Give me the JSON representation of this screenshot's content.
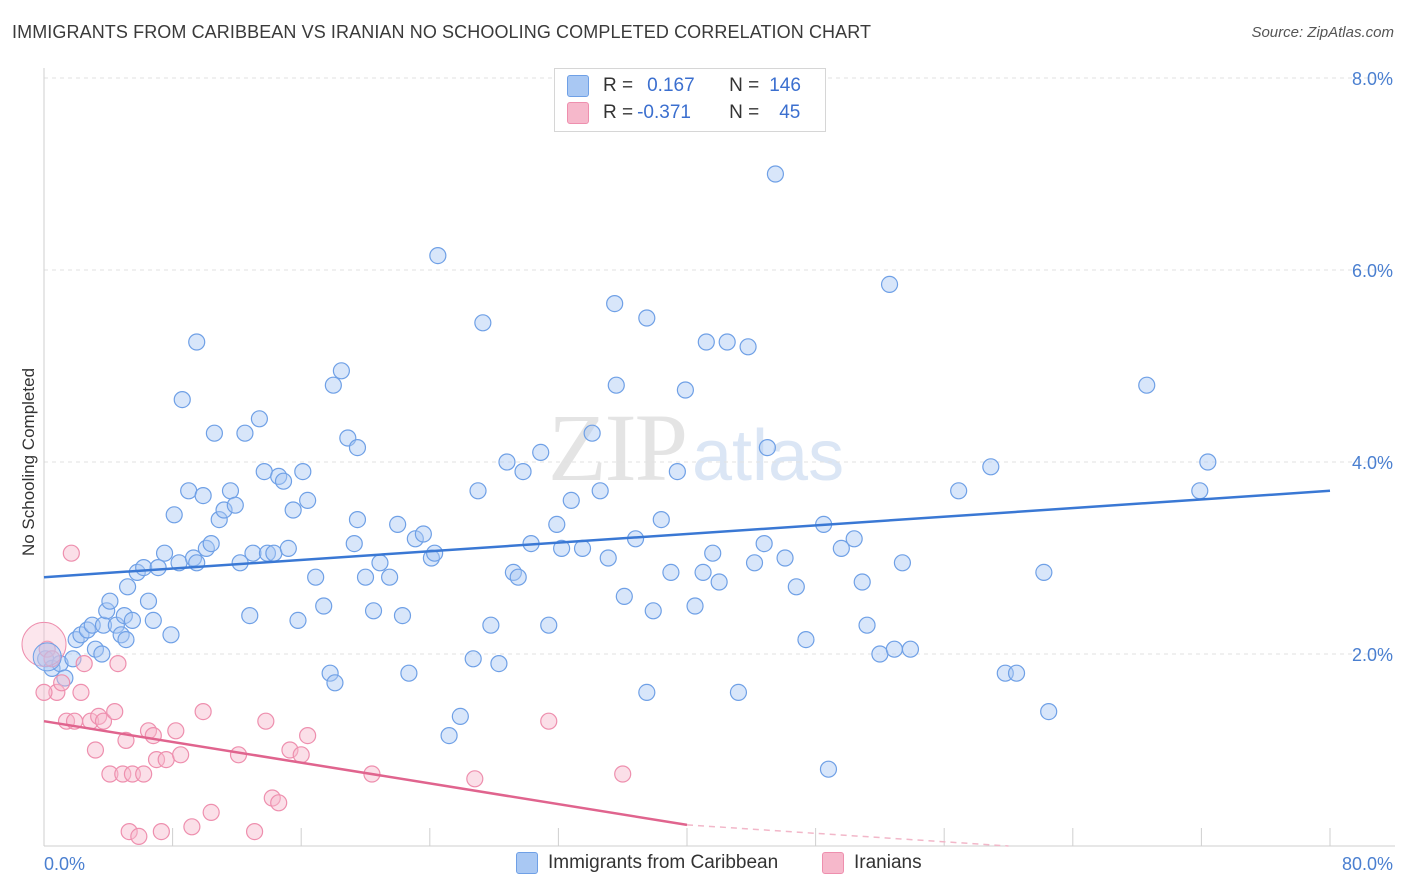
{
  "title": "IMMIGRANTS FROM CARIBBEAN VS IRANIAN NO SCHOOLING COMPLETED CORRELATION CHART",
  "source": "Source: ZipAtlas.com",
  "watermark": {
    "zip": "ZIP",
    "atlas": "atlas"
  },
  "legend": {
    "rows": [
      {
        "r_label": "R = ",
        "r_value": "0.167",
        "n_label": "N = ",
        "n_value": "146",
        "color": "#a9c8f3"
      },
      {
        "r_label": "R = ",
        "r_value": "-0.371",
        "n_label": "N = ",
        "n_value": "45",
        "color": "#f6b8cb"
      }
    ]
  },
  "bottom_legend": [
    {
      "label": "Immigrants from Caribbean",
      "color": "#a9c8f3"
    },
    {
      "label": "Iranians",
      "color": "#f6b8cb"
    }
  ],
  "chart_data": {
    "type": "scatter",
    "ylabel": "No Schooling Completed",
    "xlim": [
      0,
      80
    ],
    "ylim": [
      0,
      8
    ],
    "x_tick_labels": [
      "0.0%",
      "80.0%"
    ],
    "y_ticks": [
      2,
      4,
      6,
      8
    ],
    "y_tick_labels": [
      "2.0%",
      "4.0%",
      "6.0%",
      "8.0%"
    ],
    "grid": true,
    "series": [
      {
        "name": "Immigrants from Caribbean",
        "color": "#6fa0e6",
        "fill": "#a9c8f3",
        "trend": {
          "x": [
            0,
            80
          ],
          "y": [
            2.8,
            3.7
          ],
          "color": "#3a78d4"
        },
        "points": [
          [
            0.1,
            1.95
          ],
          [
            0.5,
            1.85
          ],
          [
            1.0,
            1.9
          ],
          [
            1.3,
            1.75
          ],
          [
            1.8,
            1.95
          ],
          [
            2.0,
            2.15
          ],
          [
            2.3,
            2.2
          ],
          [
            2.7,
            2.25
          ],
          [
            3.0,
            2.3
          ],
          [
            3.2,
            2.05
          ],
          [
            3.6,
            2.0
          ],
          [
            3.7,
            2.3
          ],
          [
            3.9,
            2.45
          ],
          [
            4.1,
            2.55
          ],
          [
            4.5,
            2.3
          ],
          [
            4.8,
            2.2
          ],
          [
            5.0,
            2.4
          ],
          [
            5.1,
            2.15
          ],
          [
            5.2,
            2.7
          ],
          [
            5.5,
            2.35
          ],
          [
            5.8,
            2.85
          ],
          [
            6.2,
            2.9
          ],
          [
            6.5,
            2.55
          ],
          [
            6.8,
            2.35
          ],
          [
            7.1,
            2.9
          ],
          [
            7.5,
            3.05
          ],
          [
            7.9,
            2.2
          ],
          [
            8.1,
            3.45
          ],
          [
            8.4,
            2.95
          ],
          [
            8.6,
            4.65
          ],
          [
            9.0,
            3.7
          ],
          [
            9.3,
            3.0
          ],
          [
            9.5,
            2.95
          ],
          [
            9.9,
            3.65
          ],
          [
            10.1,
            3.1
          ],
          [
            10.4,
            3.15
          ],
          [
            10.6,
            4.3
          ],
          [
            10.9,
            3.4
          ],
          [
            11.2,
            3.5
          ],
          [
            11.6,
            3.7
          ],
          [
            11.9,
            3.55
          ],
          [
            12.2,
            2.95
          ],
          [
            12.5,
            4.3
          ],
          [
            12.8,
            2.4
          ],
          [
            13.0,
            3.05
          ],
          [
            13.4,
            4.45
          ],
          [
            13.7,
            3.9
          ],
          [
            13.9,
            3.05
          ],
          [
            14.3,
            3.05
          ],
          [
            14.6,
            3.85
          ],
          [
            14.9,
            3.8
          ],
          [
            15.2,
            3.1
          ],
          [
            15.5,
            3.5
          ],
          [
            15.8,
            2.35
          ],
          [
            16.1,
            3.9
          ],
          [
            16.4,
            3.6
          ],
          [
            16.9,
            2.8
          ],
          [
            17.4,
            2.5
          ],
          [
            17.8,
            1.8
          ],
          [
            18.1,
            1.7
          ],
          [
            18.5,
            4.95
          ],
          [
            18.9,
            4.25
          ],
          [
            19.3,
            3.15
          ],
          [
            19.5,
            3.4
          ],
          [
            20.0,
            2.8
          ],
          [
            20.5,
            2.45
          ],
          [
            20.9,
            2.95
          ],
          [
            21.5,
            2.8
          ],
          [
            22.0,
            3.35
          ],
          [
            22.3,
            2.4
          ],
          [
            22.7,
            1.8
          ],
          [
            23.1,
            3.2
          ],
          [
            23.6,
            3.25
          ],
          [
            24.1,
            3.0
          ],
          [
            24.3,
            3.05
          ],
          [
            25.2,
            1.15
          ],
          [
            25.9,
            1.35
          ],
          [
            26.7,
            1.95
          ],
          [
            27.0,
            3.7
          ],
          [
            27.3,
            5.45
          ],
          [
            27.8,
            2.3
          ],
          [
            28.3,
            1.9
          ],
          [
            28.8,
            4.0
          ],
          [
            29.2,
            2.85
          ],
          [
            29.5,
            2.8
          ],
          [
            29.8,
            3.9
          ],
          [
            30.3,
            3.15
          ],
          [
            30.9,
            4.1
          ],
          [
            31.4,
            2.3
          ],
          [
            31.9,
            3.35
          ],
          [
            32.2,
            3.1
          ],
          [
            32.8,
            3.6
          ],
          [
            33.5,
            3.1
          ],
          [
            34.1,
            4.3
          ],
          [
            34.6,
            3.7
          ],
          [
            35.1,
            3.0
          ],
          [
            35.6,
            4.8
          ],
          [
            36.1,
            2.6
          ],
          [
            36.8,
            3.2
          ],
          [
            37.5,
            1.6
          ],
          [
            37.9,
            2.45
          ],
          [
            38.4,
            3.4
          ],
          [
            39.0,
            2.85
          ],
          [
            39.4,
            3.9
          ],
          [
            39.9,
            4.75
          ],
          [
            40.5,
            2.5
          ],
          [
            41.0,
            2.85
          ],
          [
            41.6,
            3.05
          ],
          [
            42.0,
            2.75
          ],
          [
            42.5,
            5.25
          ],
          [
            43.2,
            1.6
          ],
          [
            43.8,
            5.2
          ],
          [
            44.2,
            2.95
          ],
          [
            44.8,
            3.15
          ],
          [
            45.0,
            4.15
          ],
          [
            45.5,
            7.0
          ],
          [
            46.1,
            3.0
          ],
          [
            46.8,
            2.7
          ],
          [
            47.4,
            2.15
          ],
          [
            48.5,
            3.35
          ],
          [
            48.8,
            0.8
          ],
          [
            49.6,
            3.1
          ],
          [
            50.4,
            3.2
          ],
          [
            50.9,
            2.75
          ],
          [
            51.2,
            2.3
          ],
          [
            52.0,
            2.0
          ],
          [
            52.6,
            5.85
          ],
          [
            52.9,
            2.05
          ],
          [
            53.4,
            2.95
          ],
          [
            53.9,
            2.05
          ],
          [
            56.9,
            3.7
          ],
          [
            58.9,
            3.95
          ],
          [
            59.8,
            1.8
          ],
          [
            60.5,
            1.8
          ],
          [
            62.2,
            2.85
          ],
          [
            62.5,
            1.4
          ],
          [
            68.6,
            4.8
          ],
          [
            71.9,
            3.7
          ],
          [
            72.4,
            4.0
          ],
          [
            24.5,
            6.15
          ],
          [
            35.5,
            5.65
          ],
          [
            37.5,
            5.5
          ],
          [
            9.5,
            5.25
          ],
          [
            41.2,
            5.25
          ],
          [
            18.0,
            4.8
          ],
          [
            19.5,
            4.15
          ]
        ]
      },
      {
        "name": "Iranians",
        "color": "#ee8fae",
        "fill": "#f6b8cb",
        "trend": {
          "x": [
            0,
            40
          ],
          "y": [
            1.3,
            0.22
          ],
          "color": "#e0648e"
        },
        "trend_dashed": {
          "x": [
            40,
            60
          ],
          "y": [
            0.22,
            -0.32
          ]
        },
        "points": [
          [
            0.2,
            2.05
          ],
          [
            0.5,
            1.95
          ],
          [
            0.8,
            1.6
          ],
          [
            1.1,
            1.7
          ],
          [
            1.4,
            1.3
          ],
          [
            1.7,
            3.05
          ],
          [
            1.9,
            1.3
          ],
          [
            2.3,
            1.6
          ],
          [
            2.5,
            1.9
          ],
          [
            2.9,
            1.3
          ],
          [
            3.2,
            1.0
          ],
          [
            3.4,
            1.35
          ],
          [
            3.7,
            1.3
          ],
          [
            4.1,
            0.75
          ],
          [
            4.4,
            1.4
          ],
          [
            4.6,
            1.9
          ],
          [
            4.9,
            0.75
          ],
          [
            5.1,
            1.1
          ],
          [
            5.3,
            0.15
          ],
          [
            5.5,
            0.75
          ],
          [
            5.9,
            0.1
          ],
          [
            6.2,
            0.75
          ],
          [
            6.5,
            1.2
          ],
          [
            6.8,
            1.15
          ],
          [
            7.0,
            0.9
          ],
          [
            7.3,
            0.15
          ],
          [
            7.6,
            0.9
          ],
          [
            8.2,
            1.2
          ],
          [
            8.5,
            0.95
          ],
          [
            9.2,
            0.2
          ],
          [
            9.9,
            1.4
          ],
          [
            10.4,
            0.35
          ],
          [
            12.1,
            0.95
          ],
          [
            13.1,
            0.15
          ],
          [
            13.8,
            1.3
          ],
          [
            14.2,
            0.5
          ],
          [
            14.6,
            0.45
          ],
          [
            15.3,
            1.0
          ],
          [
            16.0,
            0.95
          ],
          [
            16.4,
            1.15
          ],
          [
            20.4,
            0.75
          ],
          [
            26.8,
            0.7
          ],
          [
            31.4,
            1.3
          ],
          [
            36.0,
            0.75
          ],
          [
            0.0,
            1.6
          ]
        ]
      }
    ]
  }
}
